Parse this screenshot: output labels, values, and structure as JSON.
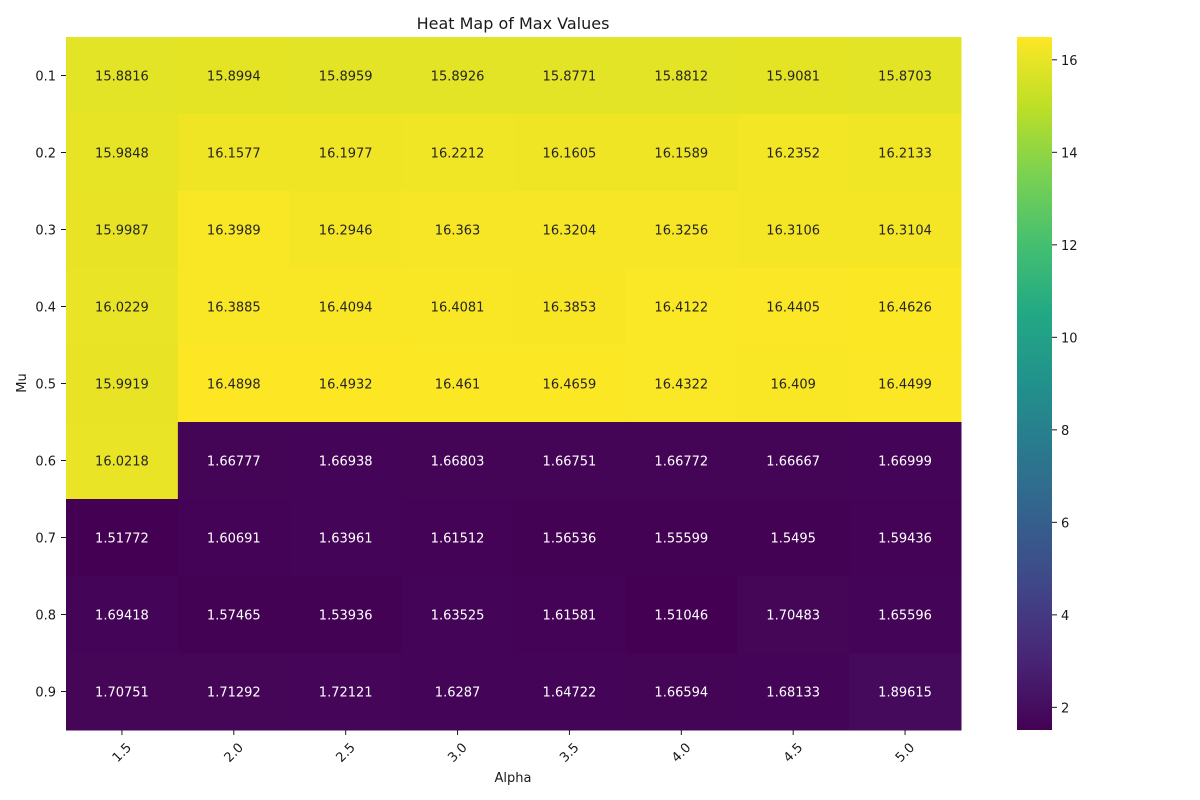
{
  "chart_data": {
    "type": "heatmap",
    "title": "Heat Map of Max Values",
    "xlabel": "Alpha",
    "ylabel": "Mu",
    "x_categories": [
      "1.5",
      "2.0",
      "2.5",
      "3.0",
      "3.5",
      "4.0",
      "4.5",
      "5.0"
    ],
    "y_categories": [
      "0.1",
      "0.2",
      "0.3",
      "0.4",
      "0.5",
      "0.6",
      "0.7",
      "0.8",
      "0.9"
    ],
    "values": [
      [
        15.8816,
        15.8994,
        15.8959,
        15.8926,
        15.8771,
        15.8812,
        15.9081,
        15.8703
      ],
      [
        15.9848,
        16.1577,
        16.1977,
        16.2212,
        16.1605,
        16.1589,
        16.2352,
        16.2133
      ],
      [
        15.9987,
        16.3989,
        16.2946,
        16.363,
        16.3204,
        16.3256,
        16.3106,
        16.3104
      ],
      [
        16.0229,
        16.3885,
        16.4094,
        16.4081,
        16.3853,
        16.4122,
        16.4405,
        16.4626
      ],
      [
        15.9919,
        16.4898,
        16.4932,
        16.461,
        16.4659,
        16.4322,
        16.409,
        16.4499
      ],
      [
        16.0218,
        1.66777,
        1.66938,
        1.66803,
        1.66751,
        1.66772,
        1.66667,
        1.66999
      ],
      [
        1.51772,
        1.60691,
        1.63961,
        1.61512,
        1.56536,
        1.55599,
        1.5495,
        1.59436
      ],
      [
        1.69418,
        1.57465,
        1.53936,
        1.63525,
        1.61581,
        1.51046,
        1.70483,
        1.65596
      ],
      [
        1.70751,
        1.71292,
        1.72121,
        1.6287,
        1.64722,
        1.66594,
        1.68133,
        1.89615
      ]
    ],
    "value_labels": [
      [
        "15.8816",
        "15.8994",
        "15.8959",
        "15.8926",
        "15.8771",
        "15.8812",
        "15.9081",
        "15.8703"
      ],
      [
        "15.9848",
        "16.1577",
        "16.1977",
        "16.2212",
        "16.1605",
        "16.1589",
        "16.2352",
        "16.2133"
      ],
      [
        "15.9987",
        "16.3989",
        "16.2946",
        "16.363",
        "16.3204",
        "16.3256",
        "16.3106",
        "16.3104"
      ],
      [
        "16.0229",
        "16.3885",
        "16.4094",
        "16.4081",
        "16.3853",
        "16.4122",
        "16.4405",
        "16.4626"
      ],
      [
        "15.9919",
        "16.4898",
        "16.4932",
        "16.461",
        "16.4659",
        "16.4322",
        "16.409",
        "16.4499"
      ],
      [
        "16.0218",
        "1.66777",
        "1.66938",
        "1.66803",
        "1.66751",
        "1.66772",
        "1.66667",
        "1.66999"
      ],
      [
        "1.51772",
        "1.60691",
        "1.63961",
        "1.61512",
        "1.56536",
        "1.55599",
        "1.5495",
        "1.59436"
      ],
      [
        "1.69418",
        "1.57465",
        "1.53936",
        "1.63525",
        "1.61581",
        "1.51046",
        "1.70483",
        "1.65596"
      ],
      [
        "1.70751",
        "1.71292",
        "1.72121",
        "1.6287",
        "1.64722",
        "1.66594",
        "1.68133",
        "1.89615"
      ]
    ],
    "colormap": "viridis",
    "colorbar": {
      "vmin": 1.51046,
      "vmax": 16.4932,
      "ticks": [
        2,
        4,
        6,
        8,
        10,
        12,
        14,
        16
      ],
      "tick_labels": [
        "2",
        "4",
        "6",
        "8",
        "10",
        "12",
        "14",
        "16"
      ]
    },
    "x_tick_rotation_deg": 45
  }
}
